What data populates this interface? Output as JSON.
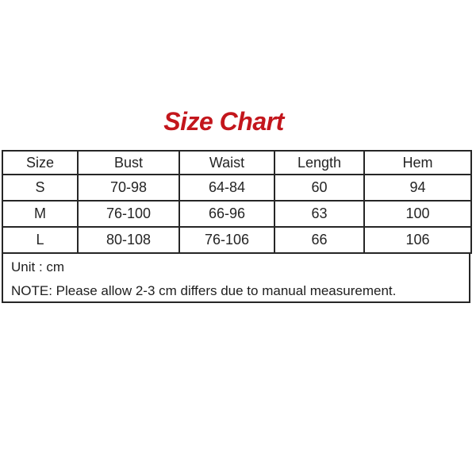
{
  "chart_data": {
    "type": "table",
    "title": "Size Chart",
    "columns": [
      "Size",
      "Bust",
      "Waist",
      "Length",
      "Hem"
    ],
    "rows": [
      [
        "S",
        "70-98",
        "64-84",
        "60",
        "94"
      ],
      [
        "M",
        "76-100",
        "66-96",
        "63",
        "100"
      ],
      [
        "L",
        "80-108",
        "76-106",
        "66",
        "106"
      ]
    ],
    "unit_label": "Unit : cm",
    "note": "NOTE: Please allow 2-3 cm differs due to manual measurement."
  },
  "colors": {
    "title_red": "#c3161c",
    "table_border": "#262626",
    "text": "#242424",
    "background": "#ffffff"
  }
}
